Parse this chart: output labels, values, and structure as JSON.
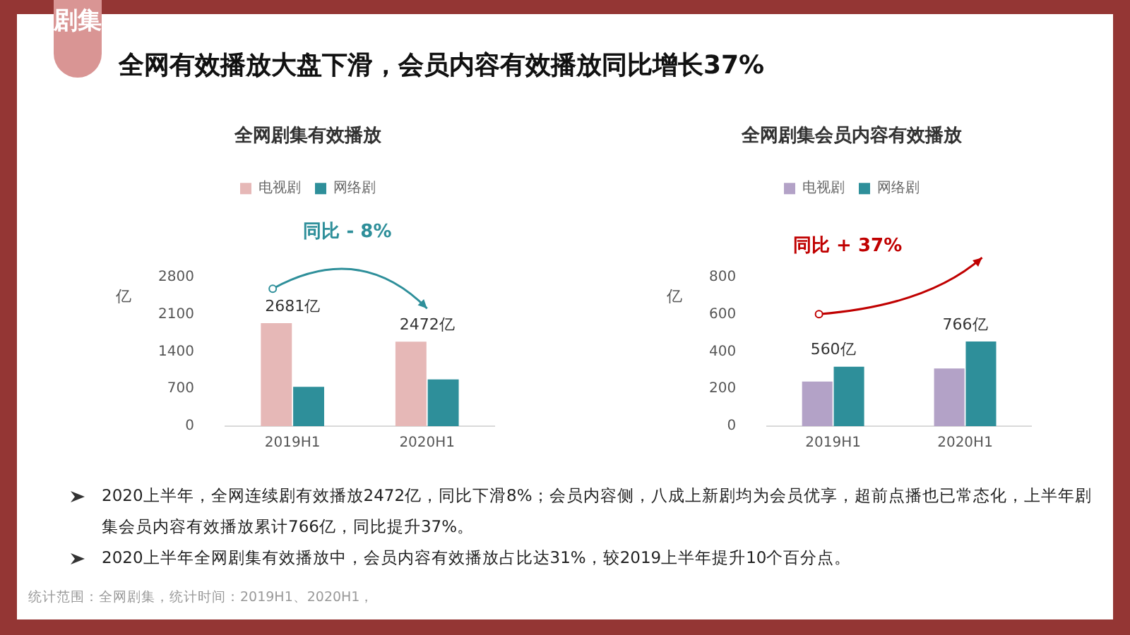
{
  "chart_data": [
    {
      "type": "bar",
      "title": "全网剧集有效播放",
      "ylabel": "亿",
      "categories": [
        "2019H1",
        "2020H1"
      ],
      "series": [
        {
          "name": "电视剧",
          "color": "#e6b8b7",
          "values": [
            1940,
            1590
          ]
        },
        {
          "name": "网络剧",
          "color": "#2e8f9a",
          "values": [
            740,
            880
          ]
        }
      ],
      "ylim": [
        0,
        2800
      ],
      "yticks": [
        0,
        700,
        1400,
        2100,
        2800
      ],
      "grid": false,
      "legend": "top",
      "annotations": [
        "2681亿",
        "2472亿",
        "同比 - 8%"
      ]
    },
    {
      "type": "bar",
      "title": "全网剧集会员内容有效播放",
      "ylabel": "亿",
      "categories": [
        "2019H1",
        "2020H1"
      ],
      "series": [
        {
          "name": "电视剧",
          "color": "#b3a2c7",
          "values": [
            240,
            310
          ]
        },
        {
          "name": "网络剧",
          "color": "#2e8f9a",
          "values": [
            320,
            455
          ]
        }
      ],
      "ylim": [
        0,
        800
      ],
      "yticks": [
        0,
        200,
        400,
        600,
        800
      ],
      "grid": false,
      "legend": "top",
      "annotations": [
        "560亿",
        "766亿",
        "同比 + 37%"
      ]
    },
    {
      "type": "other",
      "title": "全网有效播放大盘下滑，会员内容有效播放同比增长37%",
      "annotations": [
        "剧集",
        "2020上半年，全网连续剧有效播放2472亿，同比下滑8%；会员内容侧，八成上新剧均为会员优享，超前点播也已常态化，上半年剧集会员内容有效播放累计766亿，同比提升37%。",
        "2020上半年全网剧集有效播放中，会员内容有效播放占比达31%，较2019上半年提升10个百分点。",
        "统计范围：全网剧集，统计时间：2019H1、2020H1，"
      ]
    }
  ]
}
